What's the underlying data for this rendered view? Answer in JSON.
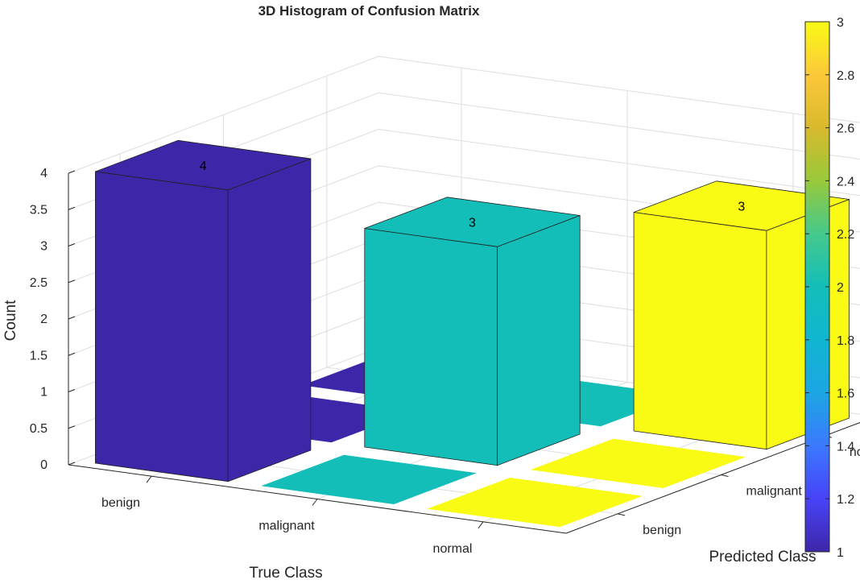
{
  "chart_data": {
    "type": "bar",
    "title": "3D Histogram of Confusion Matrix",
    "xlabel": "True Class",
    "ylabel": "Predicted Class",
    "zlabel": "Count",
    "x_categories": [
      "benign",
      "malignant",
      "normal"
    ],
    "y_categories": [
      "benign",
      "malignant",
      "normal"
    ],
    "zlim": [
      0,
      4
    ],
    "z_ticks": [
      "0",
      "0.5",
      "1",
      "1.5",
      "2",
      "2.5",
      "3",
      "3.5",
      "4"
    ],
    "grid": true,
    "bars": [
      {
        "true": "benign",
        "predicted": "benign",
        "value": 4,
        "label": "4"
      },
      {
        "true": "benign",
        "predicted": "malignant",
        "value": 0,
        "label": ""
      },
      {
        "true": "benign",
        "predicted": "normal",
        "value": 0,
        "label": ""
      },
      {
        "true": "malignant",
        "predicted": "benign",
        "value": 0,
        "label": ""
      },
      {
        "true": "malignant",
        "predicted": "malignant",
        "value": 3,
        "label": "3"
      },
      {
        "true": "malignant",
        "predicted": "normal",
        "value": 0,
        "label": ""
      },
      {
        "true": "normal",
        "predicted": "benign",
        "value": 0,
        "label": ""
      },
      {
        "true": "normal",
        "predicted": "malignant",
        "value": 0,
        "label": ""
      },
      {
        "true": "normal",
        "predicted": "normal",
        "value": 3,
        "label": "3"
      }
    ],
    "colorbar": {
      "range": [
        1,
        3
      ],
      "ticks": [
        "1",
        "1.2",
        "1.4",
        "1.6",
        "1.8",
        "2",
        "2.2",
        "2.4",
        "2.6",
        "2.8",
        "3"
      ],
      "colormap": "parula"
    }
  }
}
